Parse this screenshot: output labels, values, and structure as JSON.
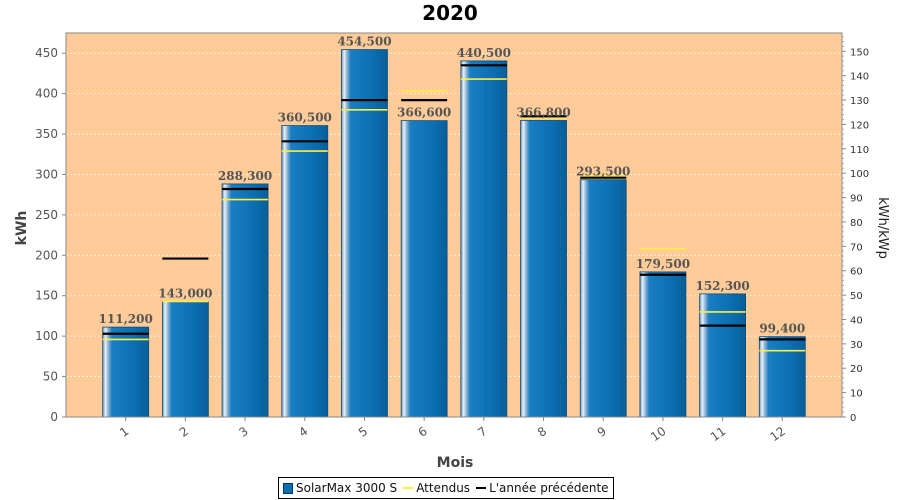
{
  "chart_data": {
    "type": "bar",
    "title": "2020",
    "xlabel": "Mois",
    "ylabel": "kWh",
    "y2label": "kWh/kWp",
    "ylim": [
      0,
      475
    ],
    "y2lim": [
      0,
      157.5
    ],
    "yticks": [
      0,
      50,
      100,
      150,
      200,
      250,
      300,
      350,
      400,
      450
    ],
    "y2ticks": [
      0,
      10,
      20,
      30,
      40,
      50,
      60,
      70,
      80,
      90,
      100,
      110,
      120,
      130,
      140,
      150
    ],
    "grid": true,
    "legend_position": "bottom",
    "categories": [
      "1",
      "2",
      "3",
      "4",
      "5",
      "6",
      "7",
      "8",
      "9",
      "10",
      "11",
      "12"
    ],
    "series": [
      {
        "name": "SolarMax 3000 S",
        "kind": "bar",
        "color": "#0a6eb0",
        "values": [
          111.2,
          143.0,
          288.3,
          360.5,
          454.5,
          366.6,
          440.5,
          366.8,
          293.5,
          179.5,
          152.3,
          99.4
        ],
        "labels": [
          "111,200",
          "143,000",
          "288,300",
          "360,500",
          "454,500",
          "366,600",
          "440,500",
          "366,800",
          "293,500",
          "179,500",
          "152,300",
          "99,400"
        ]
      },
      {
        "name": "Attendus",
        "kind": "marker-line",
        "color": "#ffee44",
        "values": [
          96,
          143,
          269,
          329,
          380,
          403,
          418,
          370,
          298,
          208,
          130,
          82
        ]
      },
      {
        "name": "L'année précédente",
        "kind": "marker-line",
        "color": "#000000",
        "values": [
          103,
          196,
          282,
          341,
          392,
          392,
          435,
          372,
          296,
          176,
          113,
          96
        ]
      }
    ]
  },
  "colors": {
    "plot_background": "#ffcc99",
    "bar_fill": "#0a6eb0",
    "expected_line": "#ffee44",
    "previous_line": "#000000"
  }
}
